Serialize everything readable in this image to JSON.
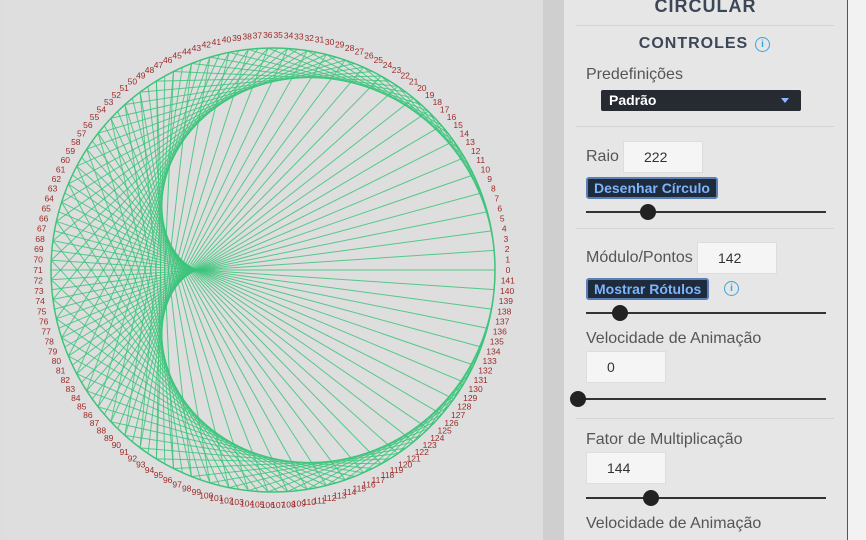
{
  "panel": {
    "app_title": "CIRCULAR",
    "controls_title": "CONTROLES",
    "info_glyph": "i",
    "presets": {
      "label": "Predefinições",
      "selected": "Padrão"
    },
    "radius": {
      "label": "Raio",
      "value": "222",
      "button": "Desenhar Círculo",
      "slider_fraction": 0.26
    },
    "modulus": {
      "label": "Módulo/Pontos",
      "value": "142",
      "button": "Mostrar Rótulos",
      "slider_fraction": 0.14
    },
    "anim_speed_1": {
      "label": "Velocidade de Animação",
      "value": "0",
      "slider_fraction": 0.0
    },
    "multiplier": {
      "label": "Fator de Multiplicação",
      "value": "144",
      "slider_fraction": 0.27
    },
    "anim_speed_2": {
      "label": "Velocidade de Animação"
    }
  },
  "visualization": {
    "points": 142,
    "factor": 144,
    "line_color": "#3cc47a",
    "label_color": "#9c2a2a"
  },
  "colors": {
    "accent": "#3aa6d8",
    "button_bg": "#1e2b3a",
    "button_text": "#7fb3ff"
  }
}
